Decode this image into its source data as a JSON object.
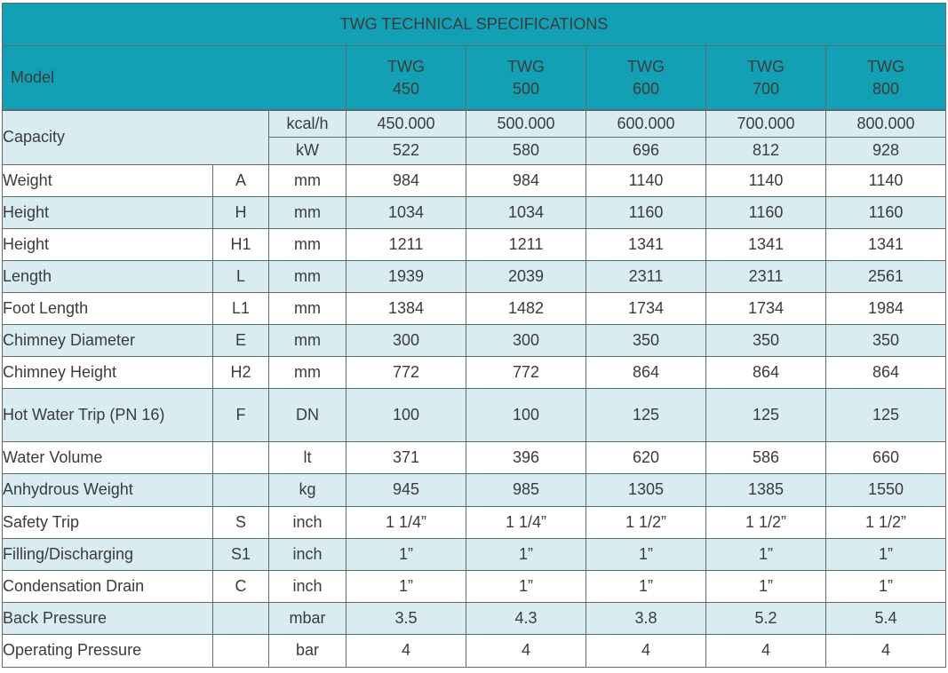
{
  "title": "TWG TECHNICAL SPECIFICATIONS",
  "header": {
    "model_label": "Model",
    "models": [
      {
        "line1": "TWG",
        "line2": "450"
      },
      {
        "line1": "TWG",
        "line2": "500"
      },
      {
        "line1": "TWG",
        "line2": "600"
      },
      {
        "line1": "TWG",
        "line2": "700"
      },
      {
        "line1": "TWG",
        "line2": "800"
      }
    ]
  },
  "capacity": {
    "label": "Capacity",
    "rows": [
      {
        "unit": "kcal/h",
        "values": [
          "450.000",
          "500.000",
          "600.000",
          "700.000",
          "800.000"
        ]
      },
      {
        "unit": "kW",
        "values": [
          "522",
          "580",
          "696",
          "812",
          "928"
        ]
      }
    ]
  },
  "rows": [
    {
      "label": "Weight",
      "symbol": "A",
      "unit": "mm",
      "values": [
        "984",
        "984",
        "1140",
        "1140",
        "1140"
      ]
    },
    {
      "label": "Height",
      "symbol": "H",
      "unit": "mm",
      "values": [
        "1034",
        "1034",
        "1160",
        "1160",
        "1160"
      ]
    },
    {
      "label": "Height",
      "symbol": "H1",
      "unit": "mm",
      "values": [
        "1211",
        "1211",
        "1341",
        "1341",
        "1341"
      ]
    },
    {
      "label": "Length",
      "symbol": "L",
      "unit": "mm",
      "values": [
        "1939",
        "2039",
        "2311",
        "2311",
        "2561"
      ]
    },
    {
      "label": "Foot Length",
      "symbol": "L1",
      "unit": "mm",
      "values": [
        "1384",
        "1482",
        "1734",
        "1734",
        "1984"
      ]
    },
    {
      "label": "Chimney Diameter",
      "symbol": "E",
      "unit": "mm",
      "values": [
        "300",
        "300",
        "350",
        "350",
        "350"
      ]
    },
    {
      "label": "Chimney Height",
      "symbol": "H2",
      "unit": "mm",
      "values": [
        "772",
        "772",
        "864",
        "864",
        "864"
      ]
    },
    {
      "label": "Hot Water Trip (PN 16)",
      "symbol": "F",
      "unit": "DN",
      "values": [
        "100",
        "100",
        "125",
        "125",
        "125"
      ]
    },
    {
      "label": "Water Volume",
      "symbol": "",
      "unit": "lt",
      "values": [
        "371",
        "396",
        "620",
        "586",
        "660"
      ]
    },
    {
      "label": "Anhydrous Weight",
      "symbol": "",
      "unit": "kg",
      "values": [
        "945",
        "985",
        "1305",
        "1385",
        "1550"
      ]
    },
    {
      "label": "Safety Trip",
      "symbol": "S",
      "unit": "inch",
      "values": [
        "1 1/4”",
        "1 1/4”",
        "1 1/2”",
        "1 1/2”",
        "1 1/2”"
      ]
    },
    {
      "label": "Filling/Discharging",
      "symbol": "S1",
      "unit": "inch",
      "values": [
        "1”",
        "1”",
        "1”",
        "1”",
        "1”"
      ]
    },
    {
      "label": "Condensation Drain",
      "symbol": "C",
      "unit": "inch",
      "values": [
        "1”",
        "1”",
        "1”",
        "1”",
        "1”"
      ]
    },
    {
      "label": "Back Pressure",
      "symbol": "",
      "unit": "mbar",
      "values": [
        "3.5",
        "4.3",
        "3.8",
        "5.2",
        "5.4"
      ]
    },
    {
      "label": "Operating Pressure",
      "symbol": "",
      "unit": "bar",
      "values": [
        "4",
        "4",
        "4",
        "4",
        "4"
      ]
    }
  ]
}
